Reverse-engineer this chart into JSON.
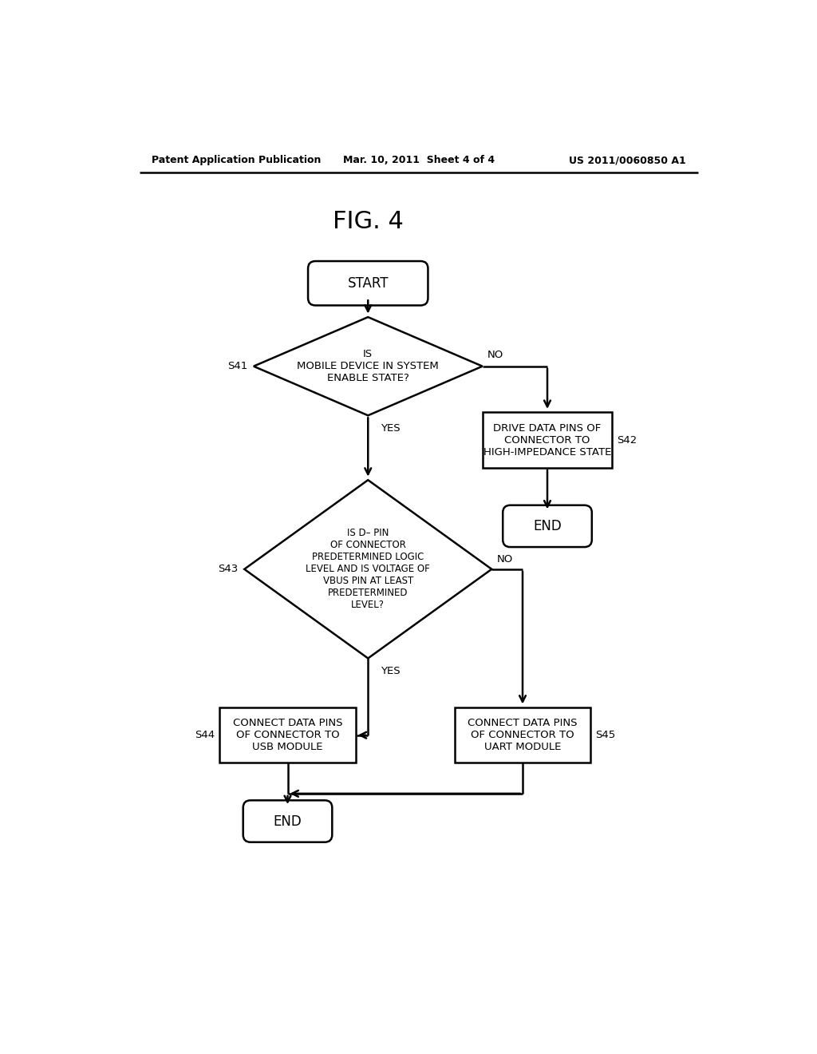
{
  "title": "FIG. 4",
  "header_left": "Patent Application Publication",
  "header_mid": "Mar. 10, 2011  Sheet 4 of 4",
  "header_right": "US 2011/0060850 A1",
  "background_color": "#ffffff",
  "line_color": "#000000",
  "text_color": "#000000",
  "start_label": "START",
  "end_label": "END",
  "s41_label": "IS\nMOBILE DEVICE IN SYSTEM\nENABLE STATE?",
  "s41_step": "S41",
  "s42_label": "DRIVE DATA PINS OF\nCONNECTOR TO\nHIGH-IMPEDANCE STATE",
  "s42_step": "S42",
  "s43_label": "IS D– PIN\nOF CONNECTOR\nPREDETERMINED LOGIC\nLEVEL AND IS VOLTAGE OF\nVBUS PIN AT LEAST\nPREDETERMINED\nLEVEL?",
  "s43_step": "S43",
  "s44_label": "CONNECT DATA PINS\nOF CONNECTOR TO\nUSB MODULE",
  "s44_step": "S44",
  "s45_label": "CONNECT DATA PINS\nOF CONNECTOR TO\nUART MODULE",
  "s45_step": "S45",
  "yes_label": "YES",
  "no_label": "NO"
}
